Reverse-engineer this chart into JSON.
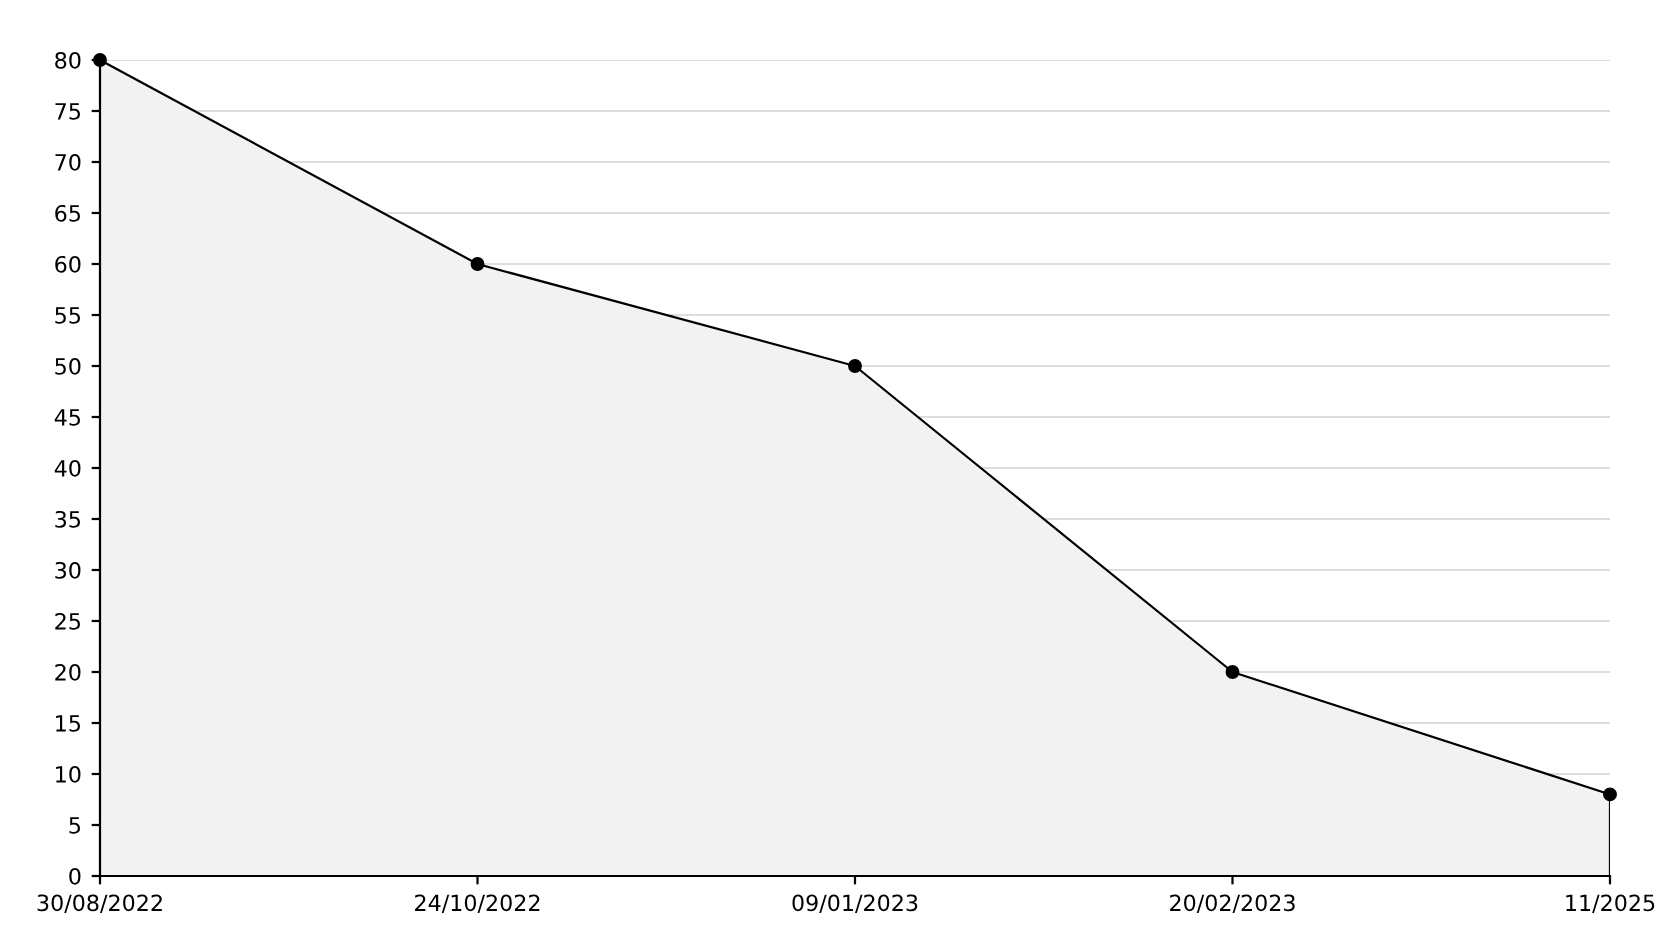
{
  "chart_data": {
    "type": "area",
    "categories": [
      "30/08/2022",
      "24/10/2022",
      "09/01/2023",
      "20/02/2023",
      "11/2025"
    ],
    "series": [
      {
        "color": "#000000",
        "values": [
          80,
          60,
          50,
          20,
          8
        ]
      }
    ],
    "ylim": [
      0,
      80
    ],
    "yticks": [
      0,
      5,
      10,
      15,
      20,
      25,
      30,
      35,
      40,
      45,
      50,
      55,
      60,
      65,
      70,
      75,
      80
    ],
    "grid": "y",
    "marker": "circle",
    "line_style": "solid"
  }
}
